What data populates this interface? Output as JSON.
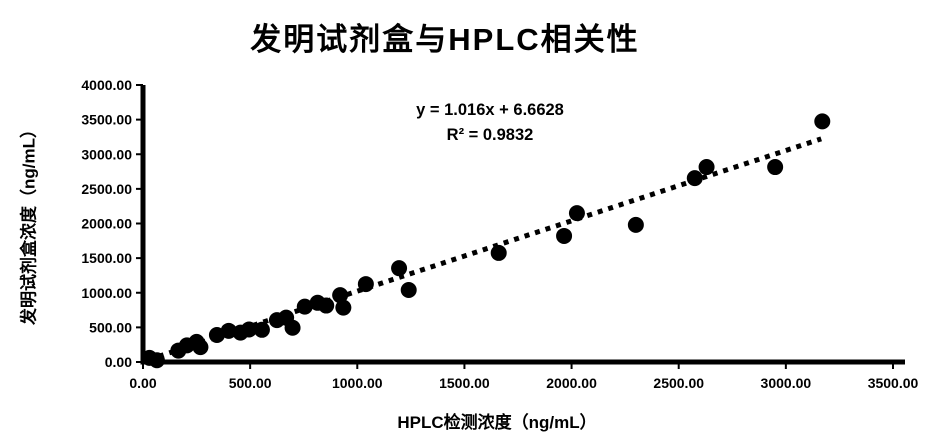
{
  "colors": {
    "ink": "#000000",
    "background": "#ffffff"
  },
  "chart_data": {
    "type": "scatter",
    "title": "发明试剂盒与HPLC相关性",
    "xlabel": "HPLC检测浓度（ng/mL）",
    "ylabel": "发明试剂盒浓度（ng/mL）",
    "xlim": [
      0,
      3500
    ],
    "ylim": [
      0,
      4000
    ],
    "x_tick_labels": [
      "0.00",
      "500.00",
      "1000.00",
      "1500.00",
      "2000.00",
      "2500.00",
      "3000.00",
      "3500.00"
    ],
    "y_tick_labels": [
      "0.00",
      "500.00",
      "1000.00",
      "1500.00",
      "2000.00",
      "2500.00",
      "3000.00",
      "3500.00",
      "4000.00"
    ],
    "equation": "y = 1.016x + 6.6628",
    "r_squared": "R² = 0.9832",
    "grid": false,
    "legend": "none",
    "marker": {
      "shape": "circle",
      "color": "#000000",
      "radius_px": 8
    },
    "trendline": {
      "type": "linear",
      "slope": 1.016,
      "intercept": 6.6628,
      "x_start": 25,
      "x_end": 3165,
      "style": "dotted",
      "color": "#000000"
    },
    "points": [
      [
        30,
        60
      ],
      [
        65,
        25
      ],
      [
        165,
        165
      ],
      [
        205,
        240
      ],
      [
        250,
        290
      ],
      [
        268,
        215
      ],
      [
        345,
        390
      ],
      [
        400,
        450
      ],
      [
        455,
        425
      ],
      [
        495,
        470
      ],
      [
        555,
        465
      ],
      [
        625,
        605
      ],
      [
        668,
        640
      ],
      [
        698,
        495
      ],
      [
        755,
        800
      ],
      [
        815,
        855
      ],
      [
        855,
        815
      ],
      [
        920,
        965
      ],
      [
        935,
        785
      ],
      [
        1040,
        1125
      ],
      [
        1195,
        1355
      ],
      [
        1240,
        1040
      ],
      [
        1660,
        1575
      ],
      [
        1965,
        1820
      ],
      [
        2025,
        2150
      ],
      [
        2300,
        1980
      ],
      [
        2575,
        2655
      ],
      [
        2630,
        2815
      ],
      [
        2950,
        2815
      ],
      [
        3170,
        3475
      ]
    ]
  }
}
